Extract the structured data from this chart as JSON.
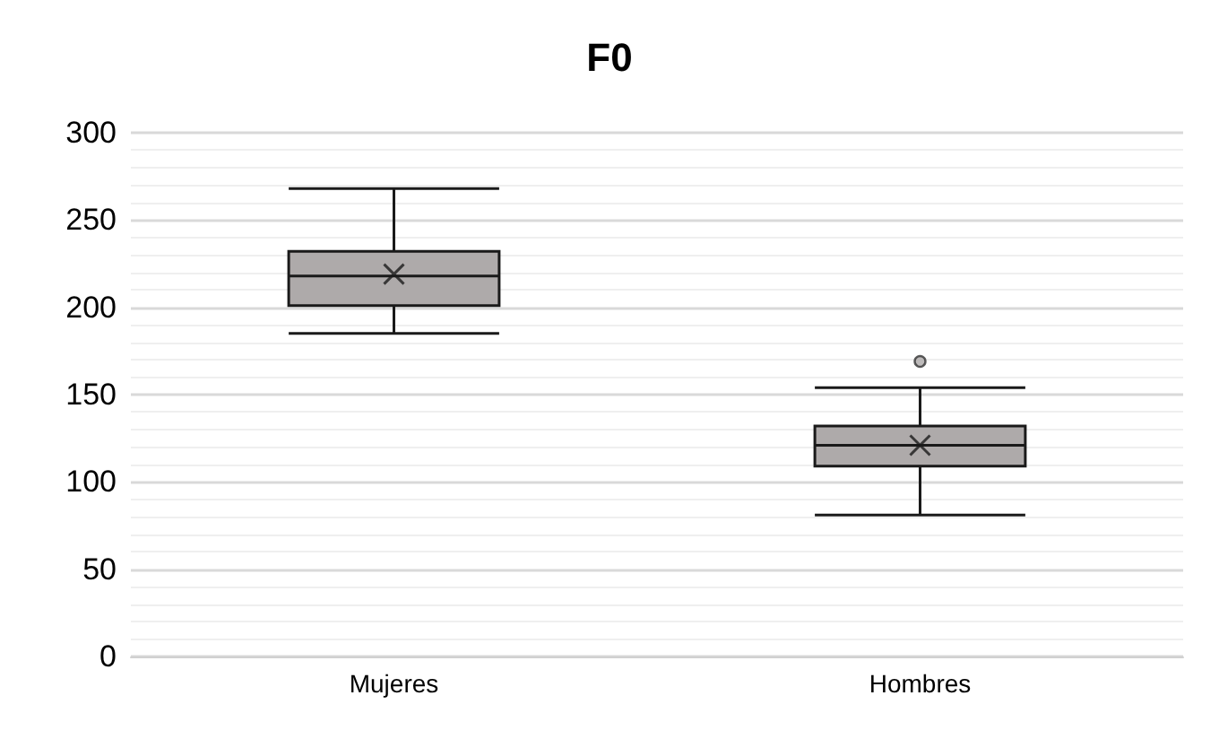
{
  "chart_data": {
    "type": "box",
    "title": "F0",
    "categories": [
      "Mujeres",
      "Hombres"
    ],
    "boxes": [
      {
        "low": 185,
        "q1": 201,
        "median": 218,
        "q3": 232,
        "high": 268,
        "mean": 219
      },
      {
        "low": 81,
        "q1": 109,
        "median": 121,
        "q3": 132,
        "high": 154,
        "mean": 121,
        "outliers": [
          169
        ]
      }
    ],
    "color": "#aeaaaa",
    "ylim": [
      0,
      300
    ],
    "yticks": [
      0,
      50,
      100,
      150,
      200,
      250,
      300
    ],
    "grid": "y"
  }
}
